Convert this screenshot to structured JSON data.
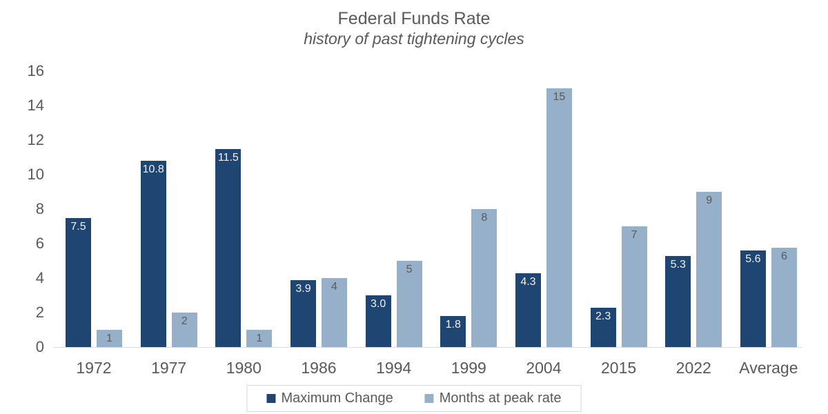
{
  "title": "Federal Funds Rate",
  "subtitle": "history of past tightening cycles",
  "colors": {
    "series1": "#1f4573",
    "series2": "#97b0c9",
    "label_on_dark": "#f2f2f2",
    "label_on_light": "#595959",
    "axis_text": "#595959",
    "baseline": "#dcdcdc",
    "legend_border": "#d7d7d7"
  },
  "chart_data": {
    "type": "bar",
    "title": "Federal Funds Rate",
    "subtitle": "history of past tightening cycles",
    "categories": [
      "1972",
      "1977",
      "1980",
      "1986",
      "1994",
      "1999",
      "2004",
      "2015",
      "2022",
      "Average"
    ],
    "series": [
      {
        "name": "Maximum Change",
        "color_key": "series1",
        "values": [
          7.5,
          10.8,
          11.5,
          3.9,
          3.0,
          1.8,
          4.3,
          2.3,
          5.3,
          5.6
        ],
        "labels": [
          "7.5",
          "10.8",
          "11.5",
          "3.9",
          "3.0",
          "1.8",
          "4.3",
          "2.3",
          "5.3",
          "5.6"
        ]
      },
      {
        "name": "Months at peak rate",
        "color_key": "series2",
        "values": [
          1,
          2,
          1,
          4,
          5,
          8,
          15,
          7,
          9,
          5.78
        ],
        "labels": [
          "1",
          "2",
          "1",
          "4",
          "5",
          "8",
          "15",
          "7",
          "9",
          "6"
        ]
      }
    ],
    "ylim": [
      0,
      16
    ],
    "yticks": [
      0,
      2,
      4,
      6,
      8,
      10,
      12,
      14,
      16
    ],
    "grid": false,
    "legend_position": "bottom",
    "data_label_position": "inside-end"
  }
}
